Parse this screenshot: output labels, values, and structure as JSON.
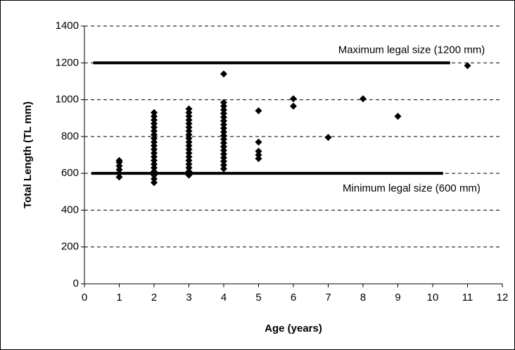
{
  "chart_data": {
    "type": "scatter",
    "xlabel": "Age (years)",
    "ylabel": "Total Length (TL mm)",
    "xlim": [
      0,
      12
    ],
    "ylim": [
      0,
      1400
    ],
    "xticks": [
      0,
      1,
      2,
      3,
      4,
      5,
      6,
      7,
      8,
      9,
      10,
      11,
      12
    ],
    "yticks": [
      0,
      200,
      400,
      600,
      800,
      1000,
      1200,
      1400
    ],
    "grid": true,
    "series": [
      {
        "color": "#000000",
        "x": [
          1,
          1,
          1,
          1,
          1,
          1,
          2,
          2,
          2,
          2,
          2,
          2,
          2,
          2,
          2,
          2,
          2,
          2,
          2,
          2,
          2,
          2,
          2,
          2,
          2,
          2,
          3,
          3,
          3,
          3,
          3,
          3,
          3,
          3,
          3,
          3,
          3,
          3,
          3,
          3,
          3,
          3,
          3,
          3,
          3,
          4,
          4,
          4,
          4,
          4,
          4,
          4,
          4,
          4,
          4,
          4,
          4,
          4,
          4,
          4,
          4,
          4,
          4,
          4,
          4,
          5,
          5,
          5,
          5,
          5,
          6,
          6,
          7,
          8,
          9,
          11
        ],
        "values": [
          580,
          600,
          620,
          640,
          660,
          670,
          550,
          570,
          590,
          610,
          630,
          650,
          670,
          690,
          710,
          730,
          750,
          770,
          790,
          810,
          830,
          850,
          870,
          890,
          910,
          930,
          590,
          610,
          630,
          650,
          670,
          690,
          710,
          730,
          750,
          770,
          790,
          810,
          830,
          850,
          870,
          890,
          910,
          930,
          950,
          625,
          645,
          665,
          685,
          705,
          725,
          745,
          765,
          785,
          805,
          825,
          845,
          865,
          885,
          905,
          925,
          945,
          965,
          985,
          1140,
          940,
          770,
          720,
          700,
          680,
          1005,
          965,
          795,
          1005,
          910,
          1185
        ]
      }
    ],
    "reference_lines": [
      {
        "value": 1200,
        "x_start": 0.25,
        "x_end": 10.5,
        "label": "Maximum legal size (1200 mm)"
      },
      {
        "value": 600,
        "x_start": 0.2,
        "x_end": 10.3,
        "label": "Minimum legal size (600 mm)"
      }
    ]
  }
}
